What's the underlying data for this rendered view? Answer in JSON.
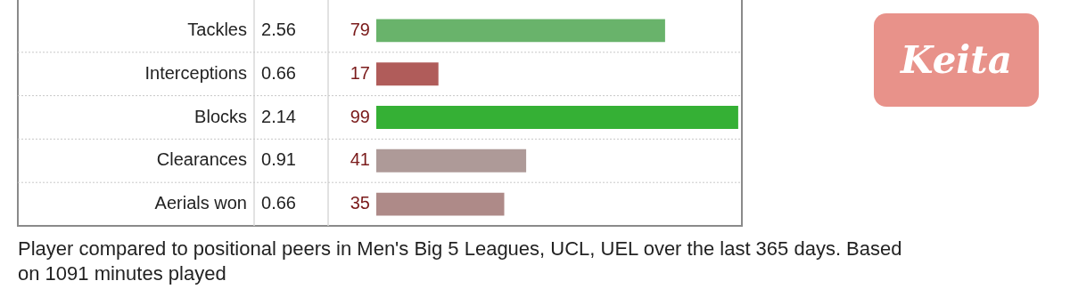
{
  "chart_data": {
    "type": "bar",
    "orientation": "horizontal",
    "title": "Keita",
    "categories": [
      "Tackles",
      "Interceptions",
      "Blocks",
      "Clearances",
      "Aerials won"
    ],
    "values": [
      79,
      17,
      99,
      41,
      35
    ],
    "colors": [
      "#69b36b",
      "#b05c5a",
      "#35b035",
      "#ae9a98",
      "#ae8a88"
    ],
    "data_labels": true,
    "xlim": [
      0,
      100
    ],
    "tick_labels": "y",
    "grid": "y",
    "legend": false,
    "annotations": [
      "2.56",
      "0.66",
      "2.14",
      "0.91",
      "0.66",
      "Player compared to positional peers in Men's Big 5 Leagues, UCL, UEL over the last 365 days. Based on 1091 minutes played"
    ]
  }
}
